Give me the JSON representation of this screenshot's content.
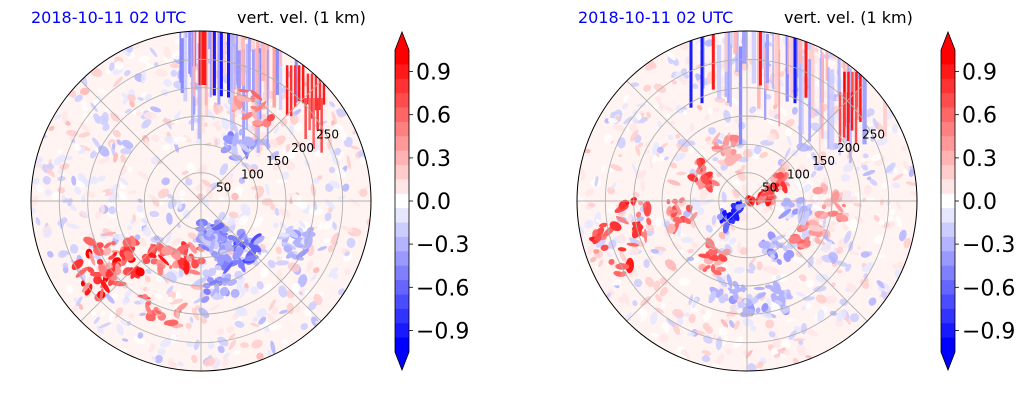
{
  "chart_data": [
    {
      "type": "heatmap",
      "projection": "polar",
      "title_left": "2018-10-11 02 UTC",
      "title_right": "vert. vel. (1 km)",
      "radial_ticks": [
        "50",
        "100",
        "150",
        "200",
        "250"
      ],
      "radial_tick_values": [
        50,
        100,
        150,
        200,
        250
      ],
      "rmax": 300,
      "angular_grid_deg": 45,
      "grid": true,
      "value_range": [
        -1.05,
        1.05
      ],
      "colormap": "bwr",
      "features": {
        "north_band": {
          "center_deg": 10,
          "spread_deg": 22,
          "blue": [
            5,
            8,
            11
          ],
          "red": [
            -1,
            0,
            1
          ]
        },
        "ne_red": [
          [
            40,
            255,
            1.0
          ],
          [
            48,
            270,
            0.9
          ],
          [
            55,
            240,
            0.8
          ]
        ],
        "red_blobs": [
          [
            -170,
            105,
            0.9
          ],
          [
            -145,
            120,
            0.95
          ],
          [
            -130,
            160,
            1.0
          ],
          [
            -125,
            230,
            1.0
          ],
          [
            -160,
            200,
            0.7
          ],
          [
            -120,
            190,
            0.85
          ],
          [
            30,
            190,
            0.7
          ]
        ],
        "blue_blobs": [
          [
            -225,
            115,
            0.7
          ],
          [
            -210,
            70,
            0.6
          ],
          [
            155,
            110,
            0.6
          ],
          [
            170,
            60,
            0.5
          ],
          [
            -190,
            150,
            0.5
          ],
          [
            35,
            120,
            0.5
          ],
          [
            -245,
            180,
            0.4
          ]
        ],
        "random_seed": 7
      }
    },
    {
      "type": "heatmap",
      "projection": "polar",
      "title_left": "2018-10-11 02 UTC",
      "title_right": "vert. vel. (1 km)",
      "radial_ticks": [
        "50",
        "100",
        "150",
        "200",
        "250"
      ],
      "radial_tick_values": [
        50,
        100,
        150,
        200,
        250
      ],
      "rmax": 300,
      "angular_grid_deg": 45,
      "grid": true,
      "value_range": [
        -1.05,
        1.05
      ],
      "colormap": "bwr",
      "features": {
        "north_band": {
          "center_deg": 15,
          "spread_deg": 35,
          "blue": [
            -25,
            -20,
            20
          ],
          "red": [
            -15,
            5,
            25
          ]
        },
        "ne_red": [
          [
            45,
            260,
            1.0
          ],
          [
            50,
            230,
            0.9
          ]
        ],
        "red_blobs": [
          [
            80,
            20,
            1.0
          ],
          [
            60,
            60,
            0.9
          ],
          [
            -60,
            90,
            0.85
          ],
          [
            -100,
            120,
            0.8
          ],
          [
            -100,
            200,
            0.95
          ],
          [
            -110,
            260,
            0.9
          ],
          [
            -20,
            100,
            0.6
          ],
          [
            -150,
            120,
            0.7
          ],
          [
            120,
            130,
            0.6
          ],
          [
            90,
            150,
            0.5
          ]
        ],
        "blue_blobs": [
          [
            -130,
            35,
            1.0
          ],
          [
            150,
            100,
            0.5
          ],
          [
            170,
            180,
            0.4
          ],
          [
            -170,
            160,
            0.4
          ],
          [
            100,
            90,
            0.4
          ]
        ],
        "random_seed": 13
      }
    }
  ],
  "colorbars": [
    {
      "ticks": [
        "0.9",
        "0.6",
        "0.3",
        "0.0",
        "−0.3",
        "−0.6",
        "−0.9"
      ],
      "tick_values": [
        0.9,
        0.6,
        0.3,
        0.0,
        -0.3,
        -0.6,
        -0.9
      ],
      "min": -1.05,
      "max": 1.05,
      "levels": 21,
      "extend": "both"
    },
    {
      "ticks": [
        "0.9",
        "0.6",
        "0.3",
        "0.0",
        "−0.3",
        "−0.6",
        "−0.9"
      ],
      "tick_values": [
        0.9,
        0.6,
        0.3,
        0.0,
        -0.3,
        -0.6,
        -0.9
      ],
      "min": -1.05,
      "max": 1.05,
      "levels": 21,
      "extend": "both"
    }
  ],
  "colors": {
    "title_left": "#0000ff",
    "title_right": "#000000",
    "grid": "#b0b0b0",
    "cmap_low": "#0000ff",
    "cmap_mid": "#ffffff",
    "cmap_high": "#ff0000"
  }
}
